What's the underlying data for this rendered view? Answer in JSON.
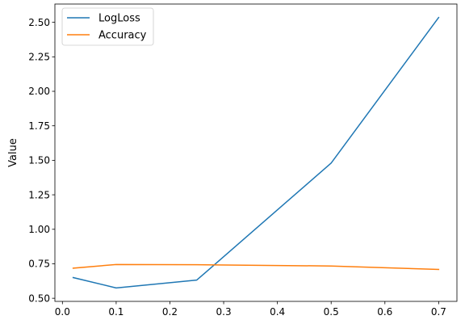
{
  "chart_data": {
    "type": "line",
    "title": "",
    "xlabel": "",
    "ylabel": "Value",
    "x": [
      0.02,
      0.1,
      0.25,
      0.5,
      0.7
    ],
    "series": [
      {
        "name": "LogLoss",
        "values": [
          0.65,
          0.575,
          0.632,
          1.48,
          2.535
        ],
        "color": "#1f77b4"
      },
      {
        "name": "Accuracy",
        "values": [
          0.718,
          0.745,
          0.743,
          0.734,
          0.709
        ],
        "color": "#ff7f0e"
      }
    ],
    "xlim": [
      -0.014,
      0.734
    ],
    "ylim": [
      0.4775,
      2.6325
    ],
    "xticks": [
      0.0,
      0.1,
      0.2,
      0.3,
      0.4,
      0.5,
      0.6,
      0.7
    ],
    "xtick_labels": [
      "0.0",
      "0.1",
      "0.2",
      "0.3",
      "0.4",
      "0.5",
      "0.6",
      "0.7"
    ],
    "yticks": [
      0.5,
      0.75,
      1.0,
      1.25,
      1.5,
      1.75,
      2.0,
      2.25,
      2.5
    ],
    "ytick_labels": [
      "0.50",
      "0.75",
      "1.00",
      "1.25",
      "1.50",
      "1.75",
      "2.00",
      "2.25",
      "2.50"
    ],
    "grid": false,
    "legend_position": "upper-left"
  }
}
